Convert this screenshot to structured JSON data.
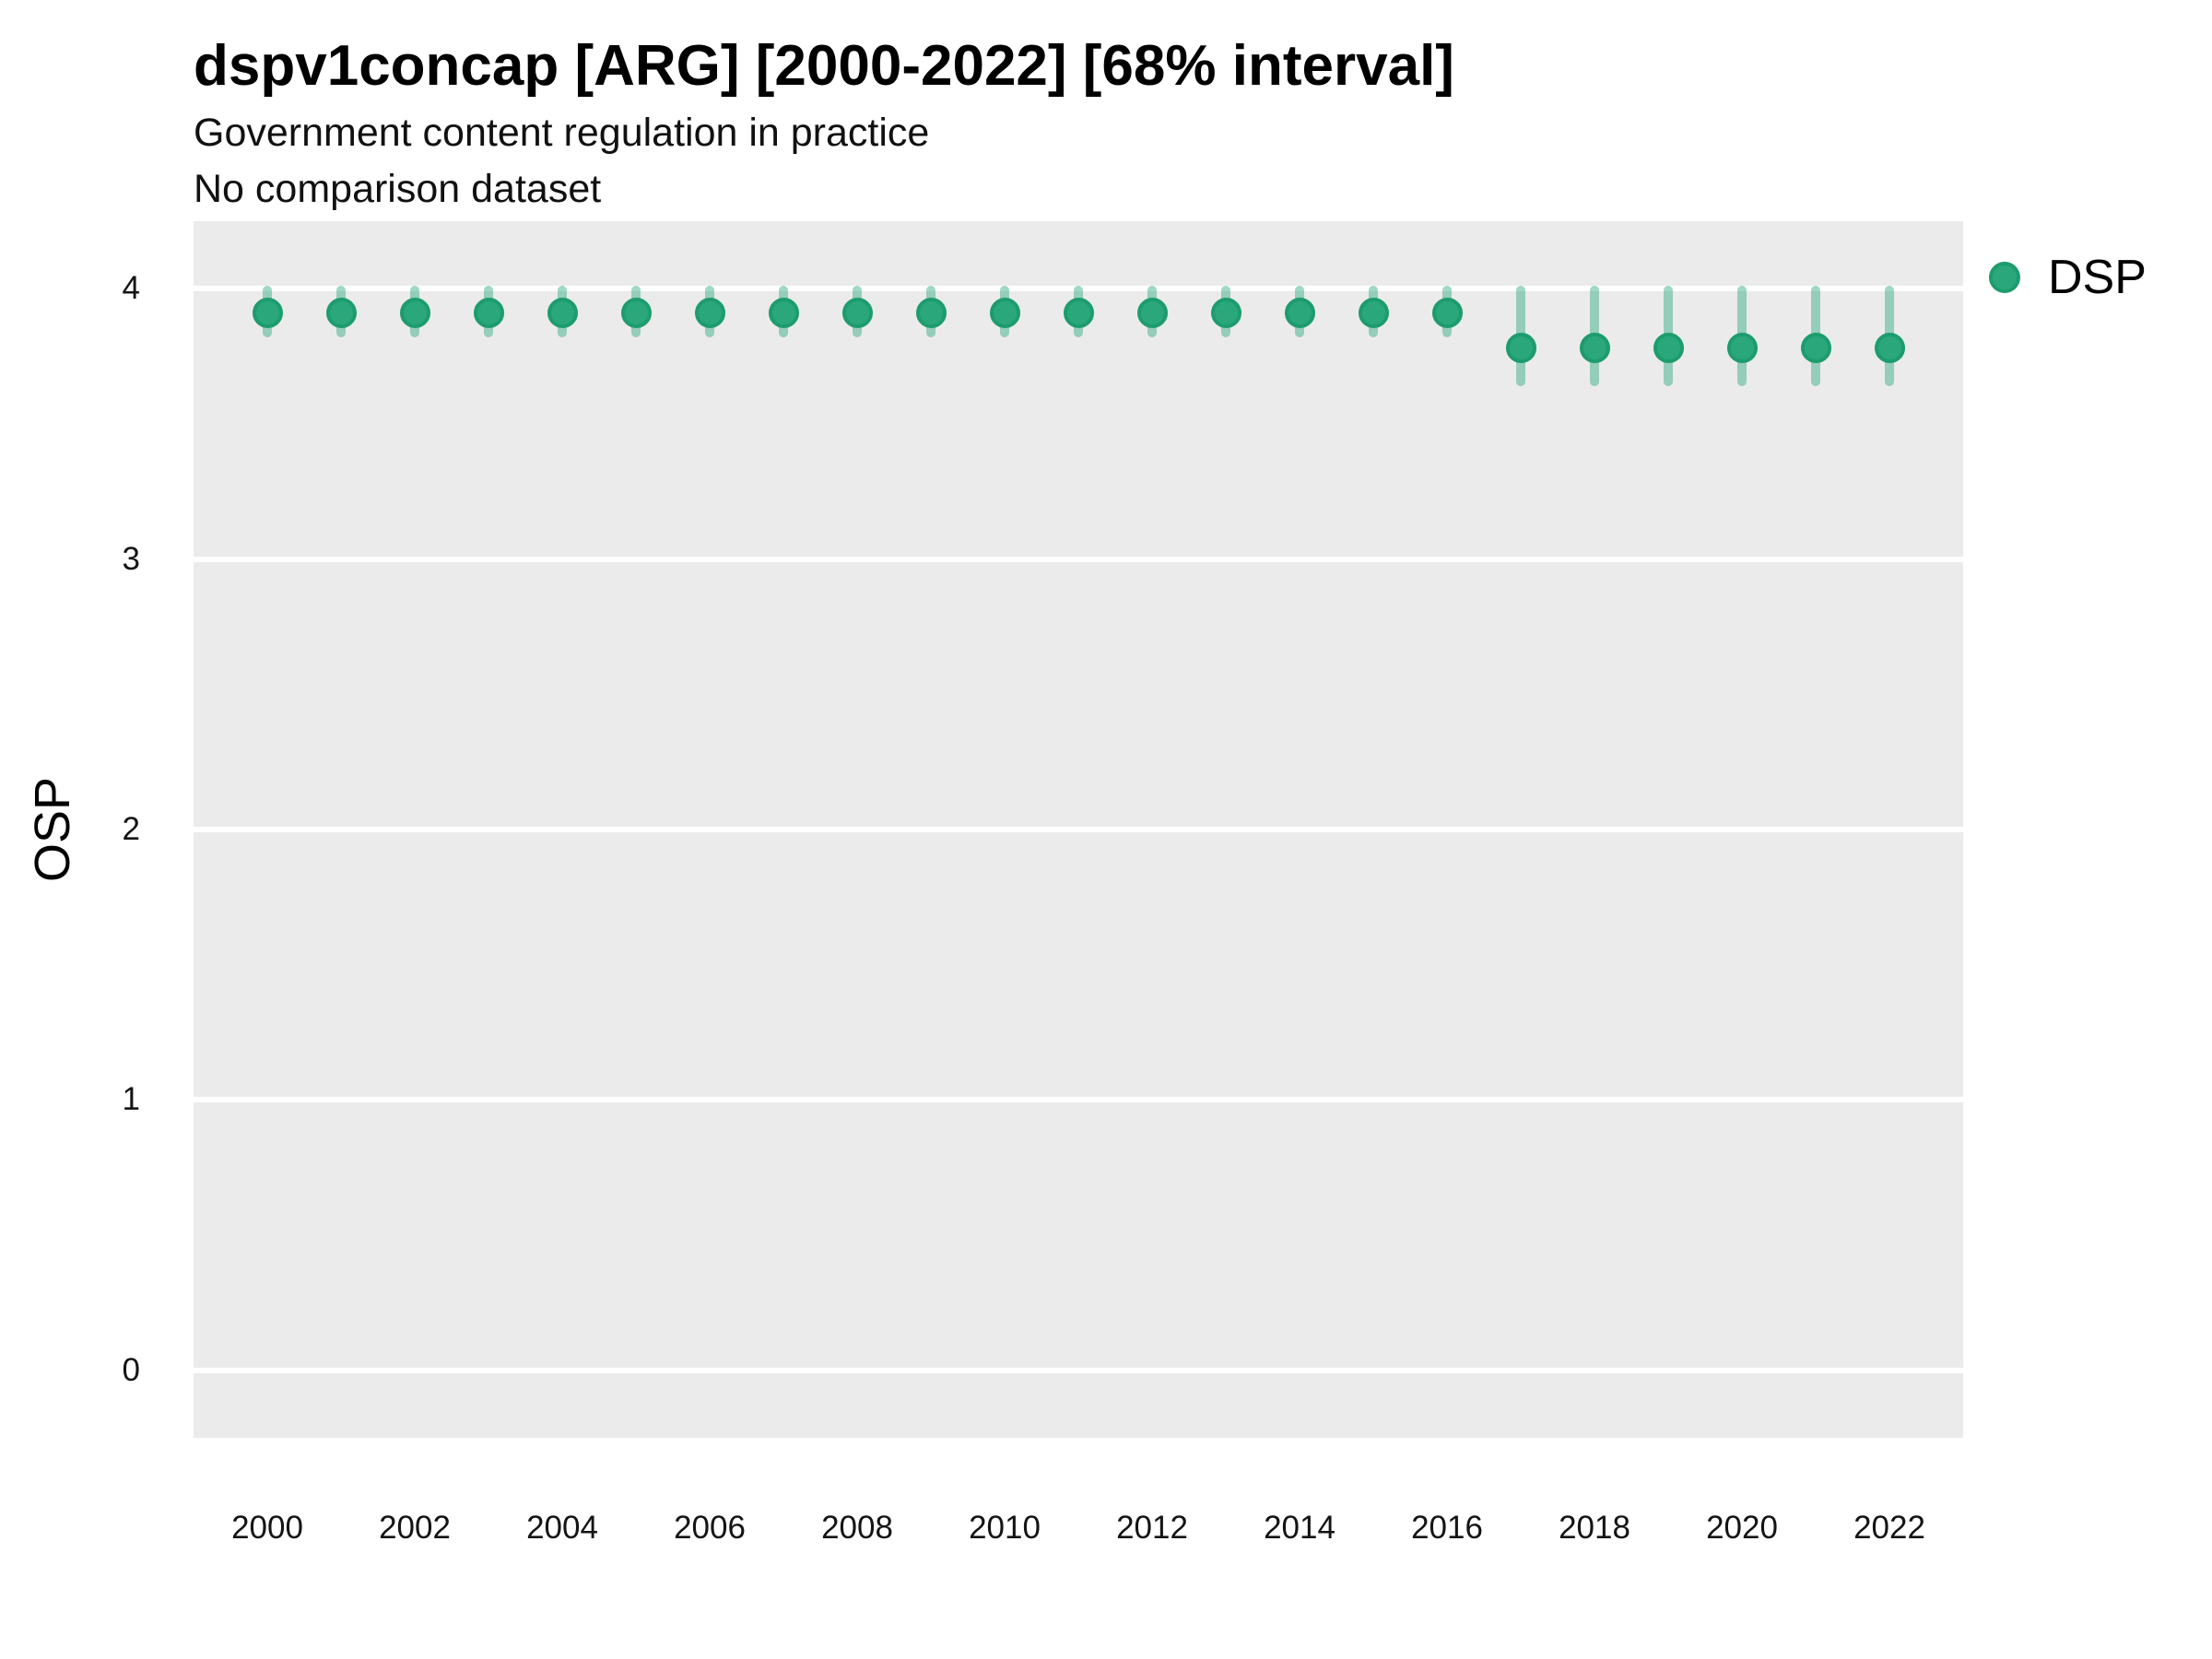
{
  "header": {
    "title": "dspv1concap [ARG] [2000-2022] [68% interval]",
    "subtitle": "Government content regulation in practice",
    "comparison_note": "No comparison dataset"
  },
  "legend": {
    "series_label": "DSP"
  },
  "colors": {
    "point": "#2aa87c",
    "point_edge": "#1d9c6e",
    "interval": "rgba(42,168,124,0.45)",
    "panel_background": "#ebebeb",
    "gridline": "#ffffff",
    "tick_text": "#141414"
  },
  "chart_data": {
    "type": "scatter",
    "title": "dspv1concap [ARG] [2000-2022] [68% interval]",
    "subtitle": "Government content regulation in practice",
    "note": "No comparison dataset",
    "series_name": "DSP",
    "interval_level": "68%",
    "country": "ARG",
    "xlabel": "",
    "ylabel": "OSP",
    "xlim": [
      1999,
      2023
    ],
    "ylim": [
      -0.25,
      4.25
    ],
    "xticks": [
      2000,
      2002,
      2004,
      2006,
      2008,
      2010,
      2012,
      2014,
      2016,
      2018,
      2020,
      2022
    ],
    "yticks": [
      0,
      1,
      2,
      3,
      4
    ],
    "grid": "horizontal-only",
    "legend_position": "right-top",
    "points": [
      {
        "year": 2000,
        "value": 3.91,
        "lo": 3.82,
        "hi": 4.01
      },
      {
        "year": 2001,
        "value": 3.91,
        "lo": 3.82,
        "hi": 4.01
      },
      {
        "year": 2002,
        "value": 3.91,
        "lo": 3.82,
        "hi": 4.01
      },
      {
        "year": 2003,
        "value": 3.91,
        "lo": 3.82,
        "hi": 4.01
      },
      {
        "year": 2004,
        "value": 3.91,
        "lo": 3.82,
        "hi": 4.01
      },
      {
        "year": 2005,
        "value": 3.91,
        "lo": 3.82,
        "hi": 4.01
      },
      {
        "year": 2006,
        "value": 3.91,
        "lo": 3.82,
        "hi": 4.01
      },
      {
        "year": 2007,
        "value": 3.91,
        "lo": 3.82,
        "hi": 4.01
      },
      {
        "year": 2008,
        "value": 3.91,
        "lo": 3.82,
        "hi": 4.01
      },
      {
        "year": 2009,
        "value": 3.91,
        "lo": 3.82,
        "hi": 4.01
      },
      {
        "year": 2010,
        "value": 3.91,
        "lo": 3.82,
        "hi": 4.01
      },
      {
        "year": 2011,
        "value": 3.91,
        "lo": 3.82,
        "hi": 4.01
      },
      {
        "year": 2012,
        "value": 3.91,
        "lo": 3.82,
        "hi": 4.01
      },
      {
        "year": 2013,
        "value": 3.91,
        "lo": 3.82,
        "hi": 4.01
      },
      {
        "year": 2014,
        "value": 3.91,
        "lo": 3.82,
        "hi": 4.01
      },
      {
        "year": 2015,
        "value": 3.91,
        "lo": 3.82,
        "hi": 4.01
      },
      {
        "year": 2016,
        "value": 3.91,
        "lo": 3.82,
        "hi": 4.01
      },
      {
        "year": 2017,
        "value": 3.78,
        "lo": 3.64,
        "hi": 4.01
      },
      {
        "year": 2018,
        "value": 3.78,
        "lo": 3.64,
        "hi": 4.01
      },
      {
        "year": 2019,
        "value": 3.78,
        "lo": 3.64,
        "hi": 4.01
      },
      {
        "year": 2020,
        "value": 3.78,
        "lo": 3.64,
        "hi": 4.01
      },
      {
        "year": 2021,
        "value": 3.78,
        "lo": 3.64,
        "hi": 4.01
      },
      {
        "year": 2022,
        "value": 3.78,
        "lo": 3.64,
        "hi": 4.01
      }
    ]
  }
}
